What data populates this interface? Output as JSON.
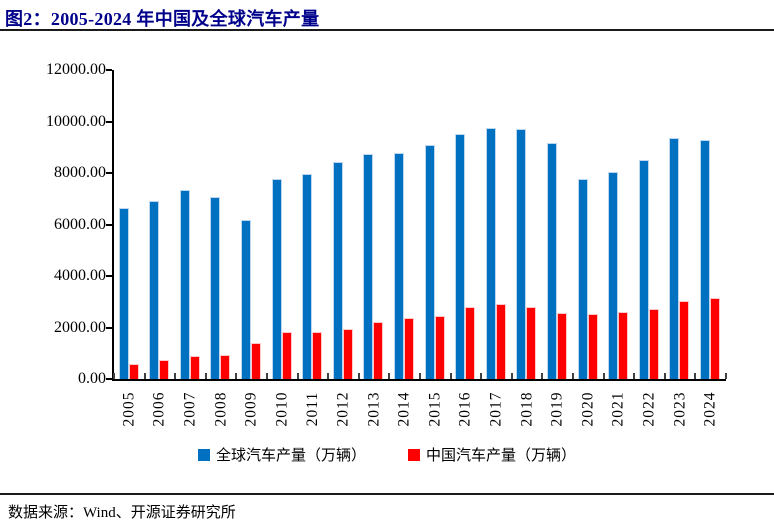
{
  "header": {
    "title": "图2：2005-2024 年中国及全球汽车产量"
  },
  "footer": {
    "source": "数据来源：Wind、开源证券研究所"
  },
  "colors": {
    "global_bar": "#0070C0",
    "china_bar": "#FF0000",
    "title_text": "#00008B",
    "axis": "#000000",
    "rule": "#1a1a1a"
  },
  "chart_data": {
    "type": "bar",
    "title": "2005-2024 年中国及全球汽车产量",
    "categories": [
      "2005",
      "2006",
      "2007",
      "2008",
      "2009",
      "2010",
      "2011",
      "2012",
      "2013",
      "2014",
      "2015",
      "2016",
      "2017",
      "2018",
      "2019",
      "2020",
      "2021",
      "2022",
      "2023",
      "2024"
    ],
    "series": [
      {
        "name": "全球汽车产量（万辆）",
        "color": "#0070C0",
        "values": [
          6650,
          6900,
          7330,
          7050,
          6170,
          7770,
          7980,
          8420,
          8750,
          8790,
          9080,
          9500,
          9760,
          9720,
          9180,
          7780,
          8020,
          8510,
          9370,
          9270
        ]
      },
      {
        "name": "中国汽车产量（万辆）",
        "color": "#FF0000",
        "values": [
          570,
          730,
          890,
          940,
          1380,
          1830,
          1840,
          1930,
          2210,
          2370,
          2450,
          2810,
          2900,
          2780,
          2570,
          2520,
          2610,
          2700,
          3020,
          3130
        ]
      }
    ],
    "xlabel": "",
    "ylabel": "",
    "ylim": [
      0,
      12000
    ],
    "y_tick_step": 2000,
    "y_tick_labels": [
      "0.00",
      "2000.00",
      "4000.00",
      "6000.00",
      "8000.00",
      "10000.00",
      "12000.00"
    ],
    "grid": false,
    "legend_position": "bottom"
  }
}
